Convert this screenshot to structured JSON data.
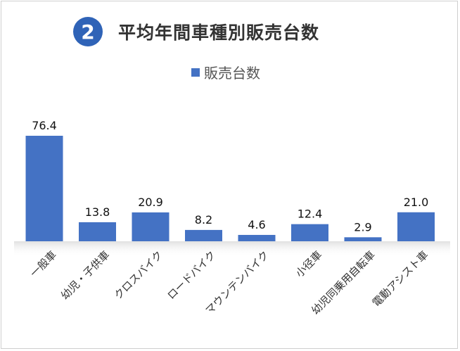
{
  "header": {
    "badge_number": "2",
    "title": "平均年間車種別販売台数"
  },
  "colors": {
    "bar": "#4472c4",
    "badge": "#2f63b7"
  },
  "chart_data": {
    "type": "bar",
    "title": "平均年間車種別販売台数",
    "categories": [
      "一般車",
      "幼児・子供車",
      "クロスバイク",
      "ロードバイク",
      "マウンテンバイク",
      "小径車",
      "幼児同乗用自転車",
      "電動アシスト車"
    ],
    "series": [
      {
        "name": "販売台数",
        "values": [
          76.4,
          13.8,
          20.9,
          8.2,
          4.6,
          12.4,
          2.9,
          21.0
        ],
        "labels": [
          "76.4",
          "13.8",
          "20.9",
          "8.2",
          "4.6",
          "12.4",
          "2.9",
          "21.0"
        ]
      }
    ],
    "ylim": [
      0,
      76.4
    ],
    "grid": false,
    "legend_position": "top"
  }
}
